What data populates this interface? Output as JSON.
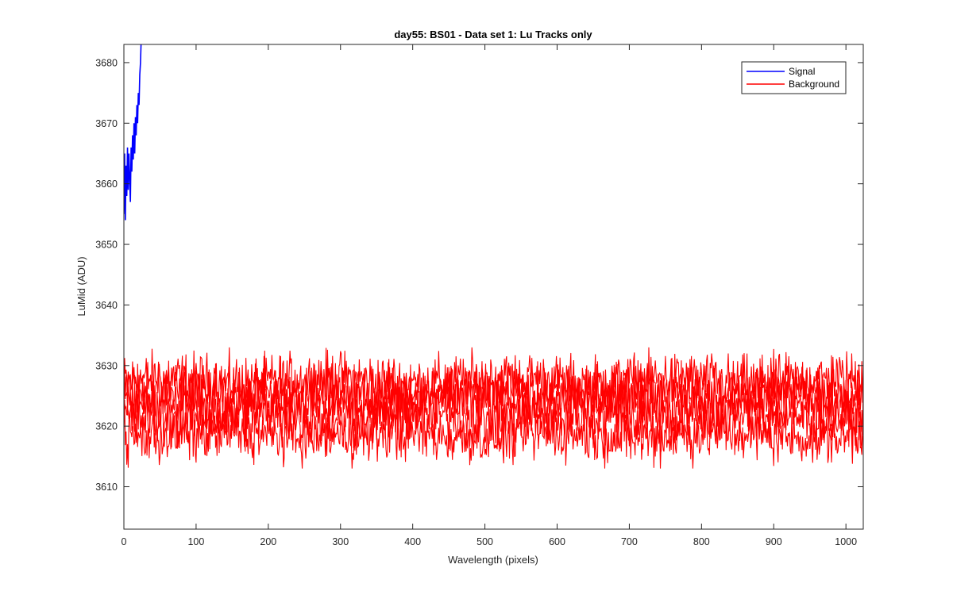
{
  "chart_data": {
    "type": "line",
    "title": "day55: BS01 - Data set 1: Lu Tracks only",
    "xlabel": "Wavelength (pixels)",
    "ylabel": "LuMid (ADU)",
    "xlim": [
      0,
      1024
    ],
    "ylim": [
      3603,
      3683
    ],
    "x_ticks": [
      0,
      100,
      200,
      300,
      400,
      500,
      600,
      700,
      800,
      900,
      1000
    ],
    "y_ticks": [
      3610,
      3620,
      3630,
      3640,
      3650,
      3660,
      3670,
      3680
    ],
    "grid": false,
    "legend_position": "top-right",
    "series": [
      {
        "name": "Signal",
        "color": "#0000ff",
        "x": [
          0,
          1,
          2,
          3,
          4,
          5,
          6,
          7,
          8,
          9,
          10,
          11,
          12,
          13,
          14,
          15,
          16,
          17,
          18,
          19,
          20,
          21,
          22,
          23,
          24
        ],
        "y": [
          3655,
          3665,
          3654,
          3663,
          3658,
          3666,
          3659,
          3665,
          3661,
          3657,
          3666,
          3662,
          3668,
          3664,
          3670,
          3665,
          3671,
          3668,
          3673,
          3670,
          3675,
          3673,
          3678,
          3680,
          3684
        ]
      },
      {
        "name": "Background",
        "color": "#ff0000",
        "traces": [
          {
            "center": 3627.5,
            "amplitude": 2.2
          },
          {
            "center": 3625.5,
            "amplitude": 2.4
          },
          {
            "center": 3624.0,
            "amplitude": 2.4
          },
          {
            "center": 3621.5,
            "amplitude": 2.4
          },
          {
            "center": 3618.5,
            "amplitude": 2.3
          }
        ],
        "x_range": [
          0,
          1024
        ],
        "y_min": 3613,
        "y_max": 3633
      }
    ]
  }
}
